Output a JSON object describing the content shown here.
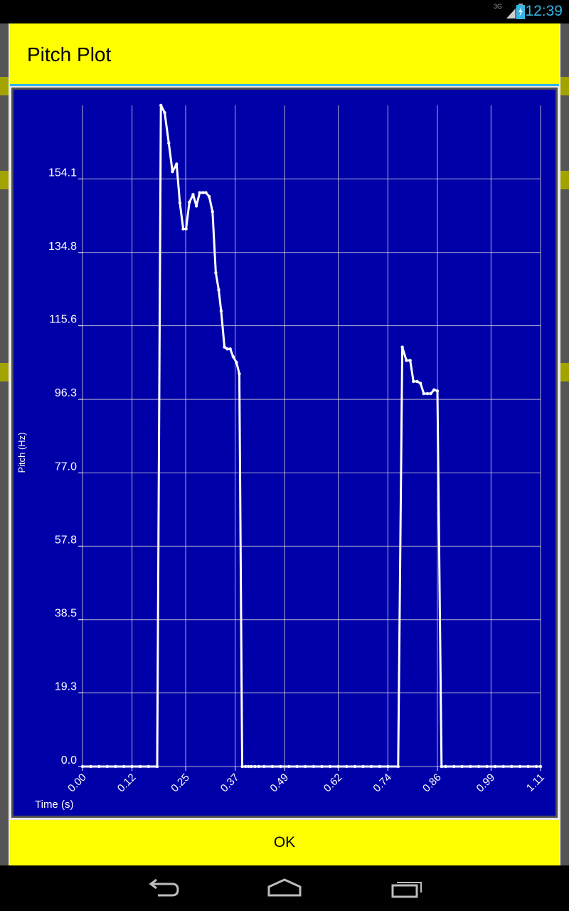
{
  "status_bar": {
    "network_label": "3G",
    "time": "12:39",
    "signal_icon": "signal-bars-icon",
    "battery_icon": "battery-charging-icon"
  },
  "dialog": {
    "title": "Pitch Plot",
    "ok_label": "OK"
  },
  "colors": {
    "title_bar": "#ffff00",
    "plot_background": "#0000a8",
    "grid": "#ffffff",
    "line": "#ffffff",
    "accent": "#33b5e5"
  },
  "chart_data": {
    "type": "line",
    "xlabel": "Time (s)",
    "ylabel": "Pitch (Hz)",
    "xlim": [
      0.0,
      1.11
    ],
    "ylim": [
      0.0,
      173.4
    ],
    "x_ticks": [
      "0.00",
      "0.12",
      "0.25",
      "0.37",
      "0.49",
      "0.62",
      "0.74",
      "0.86",
      "0.99",
      "1.11"
    ],
    "y_ticks": [
      "0.0",
      "19.3",
      "38.5",
      "57.8",
      "77.0",
      "96.3",
      "115.6",
      "134.8",
      "154.1"
    ],
    "grid": true,
    "series": [
      {
        "x": [
          0.0,
          0.02,
          0.04,
          0.06,
          0.08,
          0.1,
          0.12,
          0.14,
          0.16,
          0.181,
          0.19,
          0.199,
          0.209,
          0.218,
          0.228,
          0.236,
          0.244,
          0.251,
          0.259,
          0.268,
          0.276,
          0.284,
          0.292,
          0.299,
          0.307,
          0.315,
          0.323,
          0.33,
          0.336,
          0.344,
          0.351,
          0.358,
          0.365,
          0.373,
          0.38,
          0.387,
          0.395,
          0.402,
          0.409,
          0.418,
          0.427,
          0.44,
          0.46,
          0.48,
          0.5,
          0.52,
          0.54,
          0.56,
          0.58,
          0.6,
          0.62,
          0.64,
          0.66,
          0.68,
          0.7,
          0.72,
          0.74,
          0.765,
          0.775,
          0.785,
          0.794,
          0.802,
          0.811,
          0.819,
          0.827,
          0.836,
          0.844,
          0.852,
          0.86,
          0.87,
          0.88,
          0.9,
          0.92,
          0.94,
          0.96,
          0.98,
          1.0,
          1.02,
          1.04,
          1.06,
          1.08,
          1.1,
          1.11
        ],
        "y": [
          0,
          0,
          0,
          0,
          0,
          0,
          0,
          0,
          0,
          0,
          173.4,
          171.5,
          163.5,
          156.0,
          158.0,
          147.8,
          141.0,
          141.0,
          148.0,
          150.0,
          147.0,
          150.5,
          150.5,
          150.5,
          149.5,
          145.5,
          129.5,
          125.0,
          119.5,
          110.0,
          109.5,
          109.5,
          107.5,
          106.0,
          103.0,
          0,
          0,
          0,
          0,
          0,
          0,
          0,
          0,
          0,
          0,
          0,
          0,
          0,
          0,
          0,
          0,
          0,
          0,
          0,
          0,
          0,
          0,
          0,
          110.0,
          106.5,
          106.5,
          101.0,
          101.0,
          100.5,
          97.8,
          97.8,
          97.8,
          98.8,
          98.5,
          0,
          0,
          0,
          0,
          0,
          0,
          0,
          0,
          0,
          0,
          0,
          0,
          0,
          0
        ]
      }
    ]
  }
}
